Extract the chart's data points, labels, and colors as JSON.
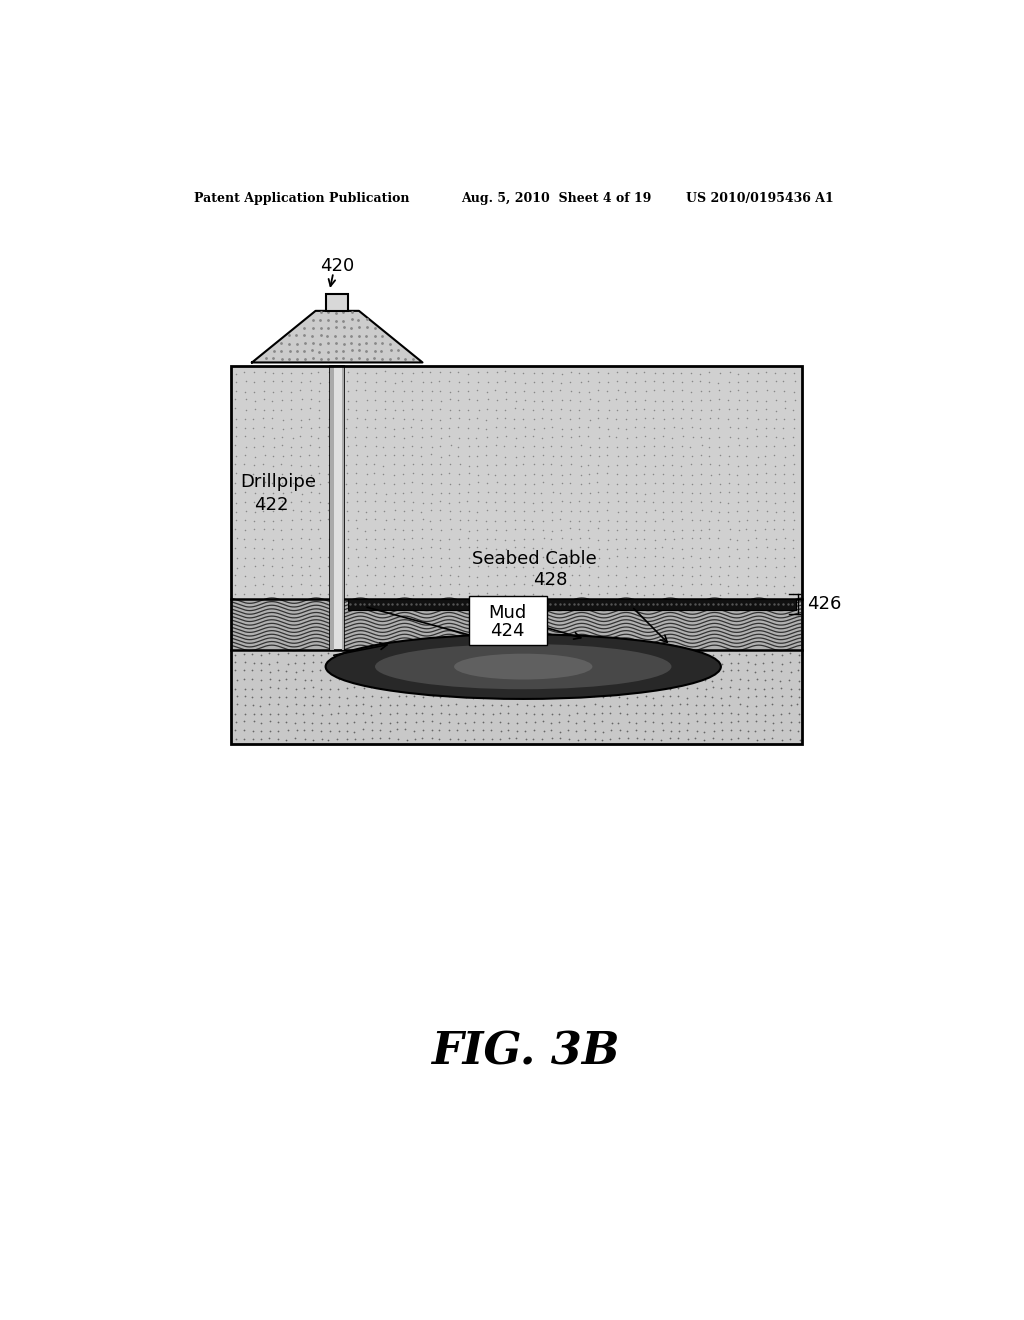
{
  "bg_color": "#ffffff",
  "header_left": "Patent Application Publication",
  "header_mid": "Aug. 5, 2010  Sheet 4 of 19",
  "header_right": "US 2010/0195436 A1",
  "figure_label": "FIG. 3B",
  "label_420": "420",
  "label_422": "422",
  "label_424": "424",
  "label_426": "426",
  "label_428": "428",
  "text_drillpipe": "Drillpipe",
  "text_mud": "Mud",
  "text_seabed_cable": "Seabed Cable",
  "dot_color_upper": "#888888",
  "dot_color_lower": "#666666",
  "wave_color": "#333333",
  "mud_fill": "#b0b0b0",
  "upper_fill": "#d0d0d0",
  "lower_fill": "#c8c8c8",
  "pipe_fill": "#e0e0e0",
  "funnel_fill": "#cccccc",
  "cable_fill": "#111111",
  "reservoir_fill": "#404040"
}
